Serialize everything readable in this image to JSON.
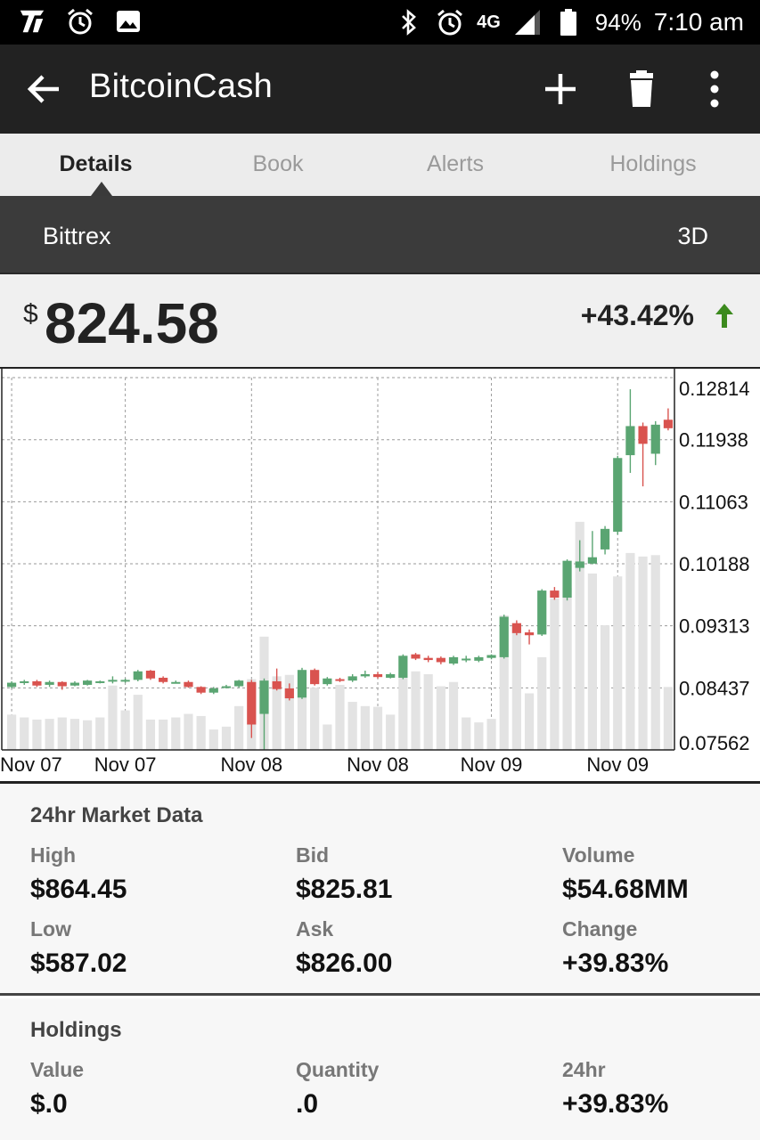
{
  "status_bar": {
    "battery": "94%",
    "time": "7:10 am",
    "network": "4G",
    "icons": [
      "carrier-icon",
      "alarm-icon",
      "image-icon",
      "bluetooth-icon",
      "alarm-icon",
      "signal-icon",
      "battery-icon"
    ]
  },
  "app_bar": {
    "title": "BitcoinCash",
    "icons": [
      "back-arrow-icon",
      "add-icon",
      "delete-icon",
      "more-vert-icon"
    ]
  },
  "tabs": [
    {
      "label": "Details",
      "active": true
    },
    {
      "label": "Book",
      "active": false
    },
    {
      "label": "Alerts",
      "active": false
    },
    {
      "label": "Holdings",
      "active": false
    }
  ],
  "exchange": {
    "name": "Bittrex",
    "range": "3D"
  },
  "price": {
    "currency": "$",
    "value": "824.58",
    "change": "+43.42%",
    "direction": "up",
    "up_color": "#3c8a1e"
  },
  "chart_data": {
    "type": "candlestick",
    "x_tick_labels": [
      "Nov 07",
      "Nov 07",
      "Nov 08",
      "Nov 08",
      "Nov 09",
      "Nov 09"
    ],
    "y_tick_labels": [
      "0.12814",
      "0.11938",
      "0.11063",
      "0.10188",
      "0.09313",
      "0.08437",
      "0.07562"
    ],
    "ylim": [
      0.07562,
      0.12814
    ],
    "up_color": "#5aa572",
    "down_color": "#d9534f",
    "volume_color": "#e3e3e3",
    "grid": true,
    "candles": [
      {
        "o": 0.0845,
        "c": 0.0851,
        "h": 0.0853,
        "l": 0.0843,
        "v": 0.0806
      },
      {
        "o": 0.0851,
        "c": 0.0853,
        "h": 0.0855,
        "l": 0.0848,
        "v": 0.0802
      },
      {
        "o": 0.0853,
        "c": 0.0847,
        "h": 0.0855,
        "l": 0.0845,
        "v": 0.0799
      },
      {
        "o": 0.0848,
        "c": 0.0852,
        "h": 0.0854,
        "l": 0.0845,
        "v": 0.08
      },
      {
        "o": 0.0852,
        "c": 0.0846,
        "h": 0.0853,
        "l": 0.0841,
        "v": 0.0802
      },
      {
        "o": 0.0847,
        "c": 0.0851,
        "h": 0.0853,
        "l": 0.0846,
        "v": 0.08
      },
      {
        "o": 0.0848,
        "c": 0.0854,
        "h": 0.0855,
        "l": 0.0847,
        "v": 0.0798
      },
      {
        "o": 0.0852,
        "c": 0.0853,
        "h": 0.0854,
        "l": 0.085,
        "v": 0.0802
      },
      {
        "o": 0.0853,
        "c": 0.0855,
        "h": 0.086,
        "l": 0.085,
        "v": 0.0847
      },
      {
        "o": 0.0853,
        "c": 0.0855,
        "h": 0.0857,
        "l": 0.0851,
        "v": 0.0812
      },
      {
        "o": 0.0855,
        "c": 0.0867,
        "h": 0.0869,
        "l": 0.0853,
        "v": 0.0834
      },
      {
        "o": 0.0868,
        "c": 0.0857,
        "h": 0.0869,
        "l": 0.0855,
        "v": 0.0799
      },
      {
        "o": 0.0858,
        "c": 0.0852,
        "h": 0.086,
        "l": 0.085,
        "v": 0.0799
      },
      {
        "o": 0.0852,
        "c": 0.0852,
        "h": 0.0854,
        "l": 0.085,
        "v": 0.0802
      },
      {
        "o": 0.0852,
        "c": 0.0845,
        "h": 0.0854,
        "l": 0.0844,
        "v": 0.0807
      },
      {
        "o": 0.0845,
        "c": 0.0837,
        "h": 0.0846,
        "l": 0.0835,
        "v": 0.0804
      },
      {
        "o": 0.0837,
        "c": 0.0843,
        "h": 0.0845,
        "l": 0.0835,
        "v": 0.0785
      },
      {
        "o": 0.0845,
        "c": 0.0846,
        "h": 0.0848,
        "l": 0.0843,
        "v": 0.0789
      },
      {
        "o": 0.0846,
        "c": 0.0854,
        "h": 0.0855,
        "l": 0.0844,
        "v": 0.0818
      },
      {
        "o": 0.0852,
        "c": 0.0792,
        "h": 0.0855,
        "l": 0.0773,
        "v": 0.0856
      },
      {
        "o": 0.0807,
        "c": 0.0854,
        "h": 0.0857,
        "l": 0.0756,
        "v": 0.0916
      },
      {
        "o": 0.0853,
        "c": 0.0842,
        "h": 0.0871,
        "l": 0.084,
        "v": 0.086
      },
      {
        "o": 0.0843,
        "c": 0.0829,
        "h": 0.085,
        "l": 0.0826,
        "v": 0.0862
      },
      {
        "o": 0.083,
        "c": 0.0869,
        "h": 0.0872,
        "l": 0.0828,
        "v": 0.0845
      },
      {
        "o": 0.0869,
        "c": 0.0849,
        "h": 0.0871,
        "l": 0.0847,
        "v": 0.0844
      },
      {
        "o": 0.0849,
        "c": 0.0857,
        "h": 0.0859,
        "l": 0.0847,
        "v": 0.0792
      },
      {
        "o": 0.0856,
        "c": 0.0854,
        "h": 0.0858,
        "l": 0.0852,
        "v": 0.0848
      },
      {
        "o": 0.0854,
        "c": 0.086,
        "h": 0.0863,
        "l": 0.0852,
        "v": 0.0824
      },
      {
        "o": 0.086,
        "c": 0.0863,
        "h": 0.0868,
        "l": 0.0858,
        "v": 0.0818
      },
      {
        "o": 0.0863,
        "c": 0.0859,
        "h": 0.0866,
        "l": 0.0857,
        "v": 0.0817
      },
      {
        "o": 0.0858,
        "c": 0.0863,
        "h": 0.0865,
        "l": 0.0857,
        "v": 0.0806
      },
      {
        "o": 0.0858,
        "c": 0.0889,
        "h": 0.0891,
        "l": 0.0856,
        "v": 0.0864
      },
      {
        "o": 0.0891,
        "c": 0.0885,
        "h": 0.0893,
        "l": 0.0883,
        "v": 0.0867
      },
      {
        "o": 0.0886,
        "c": 0.0883,
        "h": 0.0889,
        "l": 0.088,
        "v": 0.0863
      },
      {
        "o": 0.0886,
        "c": 0.088,
        "h": 0.0888,
        "l": 0.0877,
        "v": 0.0846
      },
      {
        "o": 0.0878,
        "c": 0.0887,
        "h": 0.0889,
        "l": 0.0876,
        "v": 0.0852
      },
      {
        "o": 0.0884,
        "c": 0.0885,
        "h": 0.0889,
        "l": 0.088,
        "v": 0.0802
      },
      {
        "o": 0.0882,
        "c": 0.0887,
        "h": 0.0889,
        "l": 0.088,
        "v": 0.0795
      },
      {
        "o": 0.0886,
        "c": 0.089,
        "h": 0.0891,
        "l": 0.0884,
        "v": 0.08
      },
      {
        "o": 0.0887,
        "c": 0.0944,
        "h": 0.0947,
        "l": 0.0885,
        "v": 0.0946
      },
      {
        "o": 0.0935,
        "c": 0.0921,
        "h": 0.0939,
        "l": 0.0918,
        "v": 0.0928
      },
      {
        "o": 0.0922,
        "c": 0.0918,
        "h": 0.0926,
        "l": 0.0905,
        "v": 0.0836
      },
      {
        "o": 0.0919,
        "c": 0.0981,
        "h": 0.0983,
        "l": 0.0917,
        "v": 0.0887
      },
      {
        "o": 0.0981,
        "c": 0.0971,
        "h": 0.0986,
        "l": 0.0968,
        "v": 0.097
      },
      {
        "o": 0.0971,
        "c": 0.1023,
        "h": 0.1025,
        "l": 0.0967,
        "v": 0.0985
      },
      {
        "o": 0.1013,
        "c": 0.1022,
        "h": 0.1052,
        "l": 0.1008,
        "v": 0.1078
      },
      {
        "o": 0.1019,
        "c": 0.1028,
        "h": 0.1065,
        "l": 0.1018,
        "v": 0.1005
      },
      {
        "o": 0.1039,
        "c": 0.1068,
        "h": 0.1072,
        "l": 0.1032,
        "v": 0.0932
      },
      {
        "o": 0.1064,
        "c": 0.1168,
        "h": 0.1171,
        "l": 0.106,
        "v": 0.1001
      },
      {
        "o": 0.1172,
        "c": 0.1213,
        "h": 0.1265,
        "l": 0.1147,
        "v": 0.1034
      },
      {
        "o": 0.1213,
        "c": 0.1188,
        "h": 0.1218,
        "l": 0.1128,
        "v": 0.1029
      },
      {
        "o": 0.1174,
        "c": 0.1215,
        "h": 0.122,
        "l": 0.1158,
        "v": 0.1031
      },
      {
        "o": 0.1222,
        "c": 0.121,
        "h": 0.1238,
        "l": 0.1207,
        "v": 0.0845
      }
    ]
  },
  "market_data": {
    "title": "24hr Market Data",
    "high_label": "High",
    "high": "$864.45",
    "bid_label": "Bid",
    "bid": "$825.81",
    "volume_label": "Volume",
    "volume": "$54.68MM",
    "low_label": "Low",
    "low": "$587.02",
    "ask_label": "Ask",
    "ask": "$826.00",
    "change_label": "Change",
    "change": "+39.83%"
  },
  "holdings": {
    "title": "Holdings",
    "value_label": "Value",
    "value": "$.0",
    "quantity_label": "Quantity",
    "quantity": ".0",
    "h24_label": "24hr",
    "h24": "+39.83%"
  }
}
